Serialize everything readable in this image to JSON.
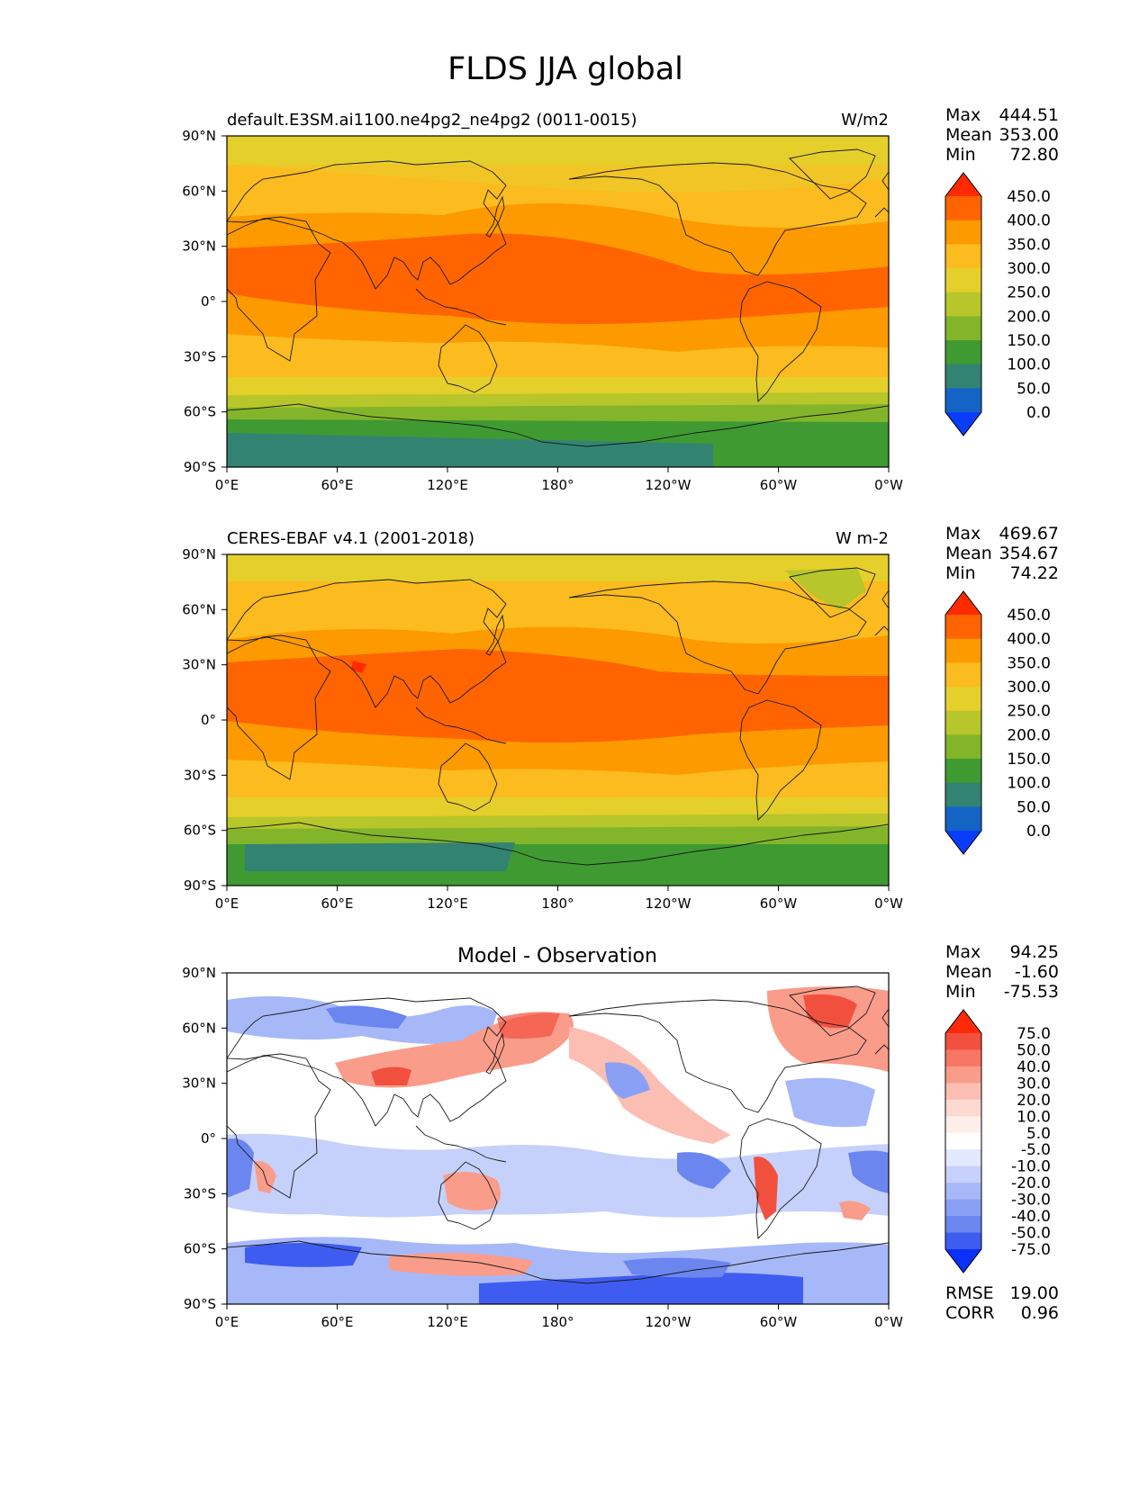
{
  "title": "FLDS JJA global",
  "x_ticks": [
    "0°E",
    "60°E",
    "120°E",
    "180°",
    "120°W",
    "60°W",
    "0°W"
  ],
  "y_ticks": [
    "90°N",
    "60°N",
    "30°N",
    "0°",
    "30°S",
    "60°S",
    "90°S"
  ],
  "panels": [
    {
      "id": "model",
      "left_title": "default.E3SM.ai1100.ne4pg2_ne4pg2 (0011-0015)",
      "center_title": "",
      "units": "W/m2",
      "stats": [
        {
          "label": "Max",
          "value": "444.51"
        },
        {
          "label": "Mean",
          "value": "353.00"
        },
        {
          "label": "Min",
          "value": "72.80"
        }
      ],
      "colorbar": {
        "labels": [
          "450.0",
          "400.0",
          "350.0",
          "300.0",
          "250.0",
          "200.0",
          "150.0",
          "100.0",
          "50.0",
          "0.0"
        ],
        "colors": [
          "#ff2a00",
          "#ff6400",
          "#fd9a00",
          "#fcbb1e",
          "#e5cf2b",
          "#b7c62a",
          "#83b52a",
          "#3f9a32",
          "#338373",
          "#1364c4",
          "#0a3cfa"
        ]
      }
    },
    {
      "id": "obs",
      "left_title": "CERES-EBAF v4.1 (2001-2018)",
      "center_title": "",
      "units": "W m-2",
      "stats": [
        {
          "label": "Max",
          "value": "469.67"
        },
        {
          "label": "Mean",
          "value": "354.67"
        },
        {
          "label": "Min",
          "value": "74.22"
        }
      ],
      "colorbar": {
        "labels": [
          "450.0",
          "400.0",
          "350.0",
          "300.0",
          "250.0",
          "200.0",
          "150.0",
          "100.0",
          "50.0",
          "0.0"
        ],
        "colors": [
          "#ff2a00",
          "#ff6400",
          "#fd9a00",
          "#fcbb1e",
          "#e5cf2b",
          "#b7c62a",
          "#83b52a",
          "#3f9a32",
          "#338373",
          "#1364c4",
          "#0a3cfa"
        ]
      }
    },
    {
      "id": "diff",
      "left_title": "",
      "center_title": "Model - Observation",
      "units": "",
      "stats": [
        {
          "label": "Max",
          "value": "94.25"
        },
        {
          "label": "Mean",
          "value": "-1.60"
        },
        {
          "label": "Min",
          "value": "-75.53"
        }
      ],
      "colorbar": {
        "labels": [
          "75.0",
          "50.0",
          "40.0",
          "30.0",
          "20.0",
          "10.0",
          "5.0",
          "-5.0",
          "-10.0",
          "-20.0",
          "-30.0",
          "-40.0",
          "-50.0",
          "-75.0"
        ],
        "colors": [
          "#ff2a0a",
          "#f2503f",
          "#f77764",
          "#fa9c8a",
          "#fcbeb2",
          "#fdd9d2",
          "#feeeea",
          "#ffffff",
          "#e2e8fd",
          "#c5d1fb",
          "#a7b8f8",
          "#8aa0f4",
          "#6c86f0",
          "#3f5cf0",
          "#0a30fa"
        ]
      },
      "extra_stats": [
        {
          "label": "RMSE",
          "value": "19.00"
        },
        {
          "label": "CORR",
          "value": "0.96"
        }
      ]
    }
  ]
}
